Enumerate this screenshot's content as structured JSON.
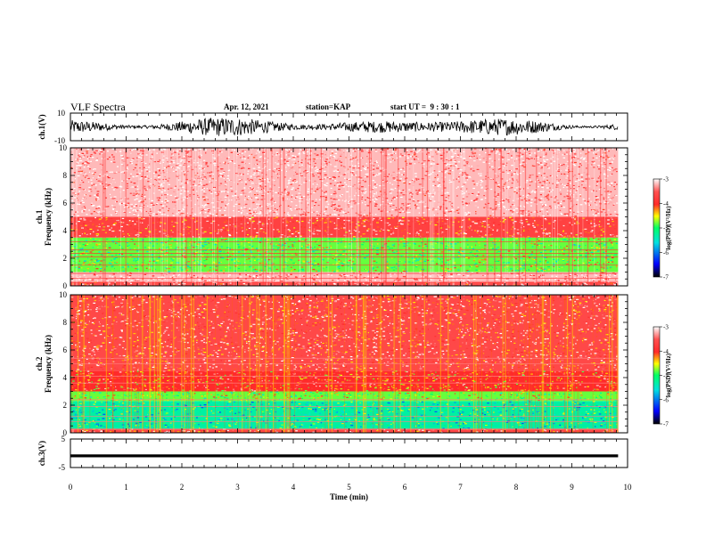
{
  "header": {
    "title": "VLF Spectra",
    "date": "Apr. 12, 2021",
    "station_label": "station=",
    "station": "KAP",
    "start_label": "start UT =",
    "start_time": "9 : 30 : 1"
  },
  "time_axis": {
    "label": "Time (min)",
    "range": [
      0,
      10
    ],
    "ticks": [
      "0",
      "1",
      "2",
      "3",
      "4",
      "5",
      "6",
      "7",
      "8",
      "9",
      "10"
    ]
  },
  "colors": {
    "spec_high": "#ff2a2a",
    "spec_white": "#ffffff",
    "spec_yellow": "#ffff00",
    "spec_green": "#00ff66",
    "spec_cyan": "#00e0e0",
    "spec_blue": "#0000ff",
    "spec_low": "#000000"
  },
  "chart_data": [
    {
      "type": "line",
      "name": "waveform-ch1",
      "ylabel": "ch.1(V)",
      "ylim": [
        -10,
        10
      ],
      "yticks": [
        "10",
        "-10"
      ],
      "description_values": "dense noise waveform, amplitude roughly ±7 V",
      "x_range_min": [
        0,
        9.83
      ]
    },
    {
      "type": "heatmap",
      "name": "spectrogram-ch1",
      "ylabel": "ch.1 Frequency (kHz)",
      "ylim": [
        0,
        10
      ],
      "yticks": [
        "0",
        "2",
        "4",
        "6",
        "8",
        "10"
      ],
      "x_range_min": [
        0,
        9.83
      ],
      "colorbar": {
        "label": "log(PSD)(V²/Hz)",
        "range": [
          -7,
          -3
        ],
        "ticks": [
          "-3",
          "-4",
          "-5",
          "-6",
          "-7"
        ]
      },
      "bands": [
        {
          "from_khz": 0,
          "to_khz": 0.3,
          "level": -3.5
        },
        {
          "from_khz": 0.3,
          "to_khz": 1.0,
          "level": -3.2
        },
        {
          "from_khz": 1.0,
          "to_khz": 3.5,
          "level": -4.8
        },
        {
          "from_khz": 3.5,
          "to_khz": 5.0,
          "level": -3.7
        },
        {
          "from_khz": 5.0,
          "to_khz": 10.0,
          "level": -3.2
        }
      ]
    },
    {
      "type": "heatmap",
      "name": "spectrogram-ch2",
      "ylabel": "ch.2 Frequency (kHz)",
      "ylim": [
        0,
        10
      ],
      "yticks": [
        "0",
        "2",
        "4",
        "6",
        "8",
        "10"
      ],
      "x_range_min": [
        0,
        9.83
      ],
      "colorbar": {
        "label": "log(PSD)(V²/Hz)",
        "range": [
          -7,
          -3
        ],
        "ticks": [
          "-3",
          "-4",
          "-5",
          "-6",
          "-7"
        ]
      },
      "bands": [
        {
          "from_khz": 0,
          "to_khz": 0.3,
          "level": -3.6
        },
        {
          "from_khz": 0.3,
          "to_khz": 2.3,
          "level": -5.3
        },
        {
          "from_khz": 2.3,
          "to_khz": 3.0,
          "level": -4.8
        },
        {
          "from_khz": 3.0,
          "to_khz": 4.5,
          "level": -4.0
        },
        {
          "from_khz": 4.5,
          "to_khz": 10.0,
          "level": -3.6
        }
      ]
    },
    {
      "type": "line",
      "name": "waveform-ch3",
      "ylabel": "ch.3(V)",
      "ylim": [
        -5,
        5
      ],
      "yticks": [
        "5",
        "-5"
      ],
      "level_v": [
        -1.4,
        -0.4
      ],
      "x_range_min": [
        0,
        9.83
      ]
    }
  ]
}
